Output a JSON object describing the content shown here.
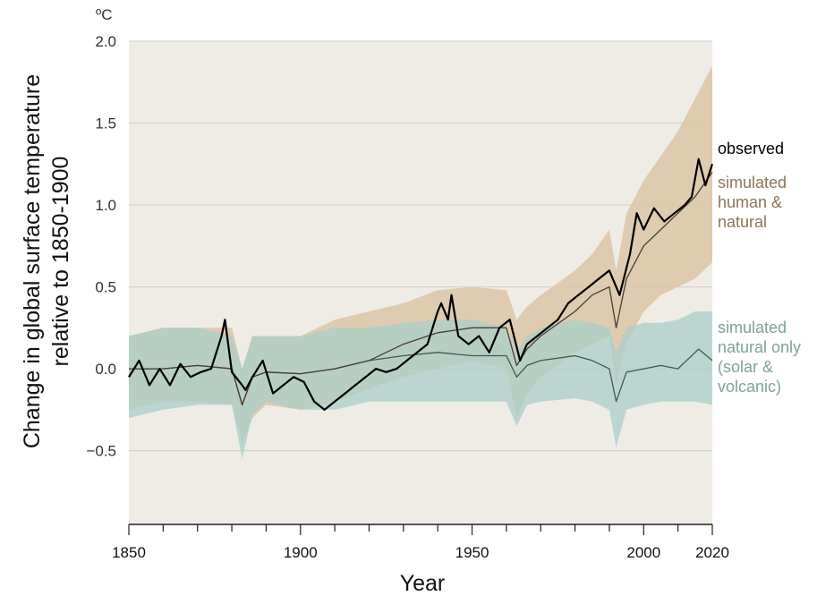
{
  "chart_data": {
    "type": "line",
    "unit": "ºC",
    "ylabel_line1": "Change in global surface temperature",
    "ylabel_line2": "relative to 1850-1900",
    "xlabel": "Year",
    "xlim": [
      1850,
      2020
    ],
    "ylim": [
      -0.95,
      2.0
    ],
    "yticks": [
      -0.5,
      0.0,
      0.5,
      1.0,
      1.5,
      2.0
    ],
    "ytick_labels": [
      "−0.5",
      "0.0",
      "0.5",
      "1.0",
      "1.5",
      "2.0"
    ],
    "xticks": [
      1850,
      1900,
      1950,
      2000,
      2020
    ],
    "xtick_labels": [
      "1850",
      "1900",
      "1950",
      "2000",
      "2020"
    ],
    "grid": true,
    "colors": {
      "plot_bg": "#efece6",
      "observed": "#000000",
      "human_natural_band": "#dcc5a6",
      "human_natural_line": "#4a3f30",
      "human_natural_text": "#8c7656",
      "natural_band": "#a9cfc9",
      "natural_line": "#3d5a50",
      "natural_text": "#7fa39a",
      "grid": "#cfcfcf"
    },
    "legend": {
      "observed": "observed",
      "human_natural": [
        "simulated",
        "human &",
        "natural"
      ],
      "natural_only": [
        "simulated",
        "natural only",
        "(solar &",
        "volcanic)"
      ]
    },
    "series": [
      {
        "name": "observed",
        "x": [
          1850,
          1853,
          1856,
          1859,
          1862,
          1865,
          1868,
          1871,
          1874,
          1877,
          1878,
          1880,
          1883,
          1884,
          1886,
          1889,
          1892,
          1895,
          1898,
          1901,
          1904,
          1907,
          1910,
          1913,
          1916,
          1919,
          1922,
          1925,
          1928,
          1931,
          1934,
          1937,
          1940,
          1941,
          1943,
          1944,
          1946,
          1949,
          1952,
          1955,
          1958,
          1961,
          1964,
          1966,
          1969,
          1972,
          1975,
          1978,
          1981,
          1984,
          1987,
          1990,
          1993,
          1996,
          1998,
          2000,
          2003,
          2006,
          2009,
          2012,
          2014,
          2016,
          2018,
          2020
        ],
        "values": [
          -0.05,
          0.05,
          -0.1,
          0.0,
          -0.1,
          0.03,
          -0.05,
          -0.02,
          0.0,
          0.2,
          0.3,
          -0.02,
          -0.1,
          -0.13,
          -0.05,
          0.05,
          -0.15,
          -0.1,
          -0.05,
          -0.08,
          -0.2,
          -0.25,
          -0.2,
          -0.15,
          -0.1,
          -0.05,
          0.0,
          -0.02,
          0.0,
          0.05,
          0.1,
          0.15,
          0.35,
          0.4,
          0.3,
          0.45,
          0.2,
          0.15,
          0.2,
          0.1,
          0.25,
          0.3,
          0.05,
          0.15,
          0.2,
          0.25,
          0.3,
          0.4,
          0.45,
          0.5,
          0.55,
          0.6,
          0.45,
          0.7,
          0.95,
          0.85,
          0.98,
          0.9,
          0.95,
          1.0,
          1.05,
          1.28,
          1.12,
          1.25
        ]
      },
      {
        "name": "simulated human & natural (mean)",
        "x": [
          1850,
          1860,
          1870,
          1880,
          1883,
          1886,
          1890,
          1900,
          1910,
          1920,
          1930,
          1940,
          1950,
          1960,
          1963,
          1966,
          1970,
          1980,
          1985,
          1990,
          1992,
          1995,
          2000,
          2005,
          2010,
          2015,
          2020
        ],
        "values": [
          0.0,
          0.0,
          0.02,
          0.0,
          -0.22,
          -0.05,
          -0.02,
          -0.03,
          0.0,
          0.05,
          0.15,
          0.22,
          0.25,
          0.25,
          0.02,
          0.12,
          0.2,
          0.35,
          0.45,
          0.5,
          0.25,
          0.55,
          0.75,
          0.85,
          0.95,
          1.05,
          1.2
        ]
      },
      {
        "name": "simulated natural only (mean)",
        "x": [
          1850,
          1860,
          1870,
          1880,
          1883,
          1886,
          1890,
          1900,
          1910,
          1920,
          1930,
          1940,
          1950,
          1960,
          1963,
          1966,
          1970,
          1980,
          1985,
          1990,
          1992,
          1995,
          2000,
          2005,
          2010,
          2015,
          2016,
          2020
        ],
        "values": [
          0.0,
          0.0,
          0.02,
          0.0,
          -0.22,
          -0.05,
          -0.02,
          -0.03,
          0.0,
          0.05,
          0.08,
          0.1,
          0.08,
          0.08,
          -0.05,
          0.02,
          0.05,
          0.08,
          0.05,
          0.0,
          -0.2,
          -0.02,
          0.0,
          0.02,
          0.0,
          0.1,
          0.12,
          0.05
        ]
      }
    ],
    "bands": [
      {
        "name": "simulated human & natural range",
        "x": [
          1850,
          1860,
          1870,
          1880,
          1883,
          1886,
          1890,
          1900,
          1910,
          1920,
          1930,
          1940,
          1950,
          1960,
          1963,
          1966,
          1970,
          1980,
          1985,
          1990,
          1992,
          1995,
          2000,
          2005,
          2010,
          2015,
          2020
        ],
        "low": [
          -0.25,
          -0.2,
          -0.2,
          -0.22,
          -0.45,
          -0.3,
          -0.22,
          -0.25,
          -0.2,
          -0.12,
          -0.05,
          0.0,
          0.05,
          0.0,
          -0.3,
          -0.15,
          -0.05,
          0.1,
          0.15,
          0.2,
          -0.1,
          0.15,
          0.35,
          0.45,
          0.5,
          0.55,
          0.65
        ],
        "high": [
          0.2,
          0.25,
          0.25,
          0.25,
          0.0,
          0.2,
          0.2,
          0.2,
          0.3,
          0.35,
          0.4,
          0.48,
          0.5,
          0.48,
          0.3,
          0.38,
          0.45,
          0.6,
          0.7,
          0.85,
          0.6,
          0.95,
          1.15,
          1.3,
          1.45,
          1.65,
          1.85
        ]
      },
      {
        "name": "simulated natural only range",
        "x": [
          1850,
          1860,
          1870,
          1880,
          1883,
          1886,
          1890,
          1900,
          1910,
          1920,
          1930,
          1940,
          1950,
          1960,
          1963,
          1966,
          1970,
          1980,
          1985,
          1990,
          1992,
          1995,
          2000,
          2005,
          2010,
          2015,
          2020
        ],
        "low": [
          -0.3,
          -0.25,
          -0.22,
          -0.22,
          -0.55,
          -0.28,
          -0.2,
          -0.25,
          -0.25,
          -0.2,
          -0.2,
          -0.2,
          -0.2,
          -0.2,
          -0.35,
          -0.22,
          -0.2,
          -0.18,
          -0.2,
          -0.25,
          -0.48,
          -0.25,
          -0.22,
          -0.2,
          -0.2,
          -0.2,
          -0.22
        ],
        "high": [
          0.2,
          0.25,
          0.25,
          0.2,
          0.0,
          0.2,
          0.2,
          0.2,
          0.25,
          0.25,
          0.28,
          0.3,
          0.3,
          0.25,
          0.1,
          0.2,
          0.25,
          0.3,
          0.28,
          0.25,
          0.1,
          0.25,
          0.28,
          0.28,
          0.3,
          0.35,
          0.35
        ]
      }
    ]
  }
}
